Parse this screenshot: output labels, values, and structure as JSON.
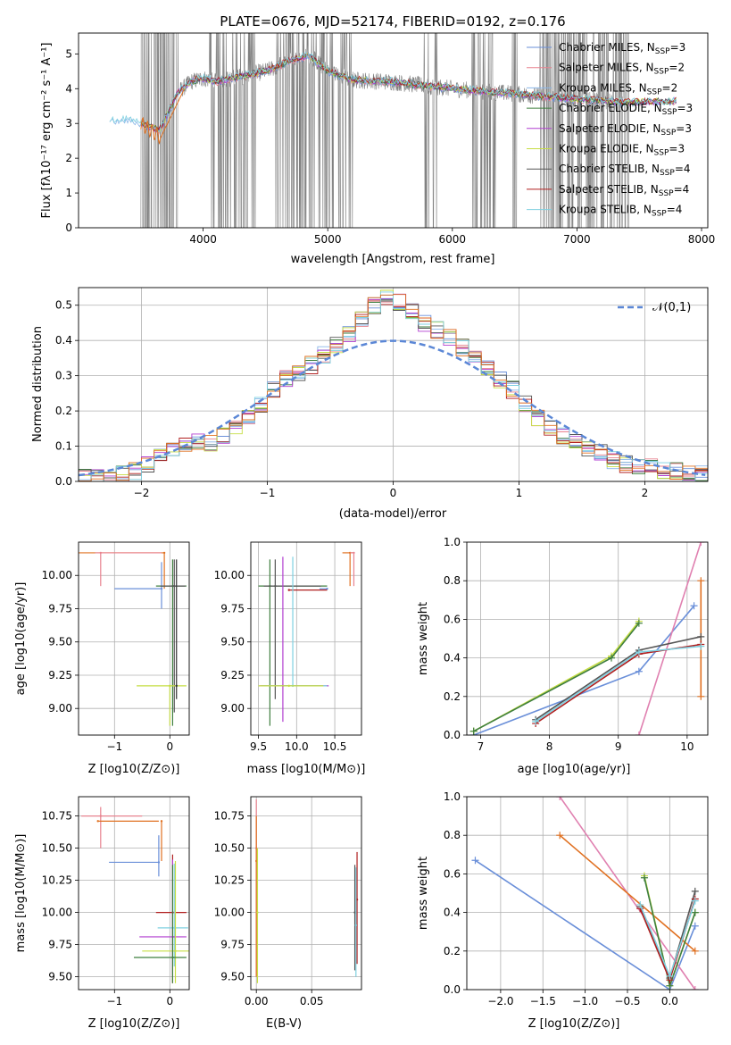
{
  "colors": {
    "c0": "#6a8fd9",
    "c1": "#e8828f",
    "c2": "#8ab6e8",
    "c3": "#3f7f3f",
    "c4": "#b23fd0",
    "c5": "#c6dd44",
    "c6": "#555555",
    "c7": "#b01f1f",
    "c8": "#7fd0e0",
    "chab": "#6688dd",
    "salp": "#e07020",
    "krou": "#e080b0",
    "gray": "#808080",
    "grid": "#b0b0b0"
  },
  "chart_data": [
    {
      "id": "spectrum",
      "type": "line",
      "title": "PLATE=0676, MJD=52174, FIBERID=0192, z=0.176",
      "xlabel": "wavelength [Angstrom, rest frame]",
      "ylabel": "Flux [fλ10⁻¹⁷ erg cm⁻² s⁻¹ A⁻¹]",
      "xlim": [
        3000,
        8050
      ],
      "ylim": [
        0,
        5.6
      ],
      "xticks": [
        4000,
        5000,
        6000,
        7000,
        8000
      ],
      "yticks": [
        0,
        1,
        2,
        3,
        4,
        5
      ],
      "legend_position": "upper-right",
      "legend": [
        "Chabrier MILES, N_SSP=3",
        "Salpeter MILES, N_SSP=2",
        "Kroupa MILES, N_SSP=2",
        "Chabrier ELODIE, N_SSP=3",
        "Salpeter ELODIE, N_SSP=3",
        "Kroupa ELODIE, N_SSP=3",
        "Chabrier STELIB, N_SSP=4",
        "Salpeter STELIB, N_SSP=4",
        "Kroupa STELIB, N_SSP=4"
      ],
      "legend_colors": [
        "#6a8fd9",
        "#e8828f",
        "#8ab6e8",
        "#3f7f3f",
        "#b23fd0",
        "#c6dd44",
        "#555555",
        "#b01f1f",
        "#7fd0e0"
      ],
      "model_continuum": {
        "x": [
          3250,
          3400,
          3500,
          3650,
          3800,
          3900,
          4000,
          4100,
          4300,
          4500,
          4700,
          4850,
          5000,
          5200,
          5500,
          6000,
          6500,
          7000,
          7400,
          7800
        ],
        "y": [
          3.05,
          3.1,
          3.0,
          2.8,
          3.9,
          4.2,
          4.3,
          4.2,
          4.35,
          4.5,
          4.8,
          4.95,
          4.5,
          4.25,
          4.2,
          4.0,
          3.85,
          3.7,
          3.6,
          3.65
        ]
      }
    },
    {
      "id": "residuals",
      "type": "line",
      "xlabel": "(data-model)/error",
      "ylabel": "Normed distribution",
      "xlim": [
        -2.5,
        2.5
      ],
      "ylim": [
        0,
        0.55
      ],
      "xticks": [
        -2,
        -1,
        0,
        1,
        2
      ],
      "yticks": [
        0.0,
        0.1,
        0.2,
        0.3,
        0.4,
        0.5
      ],
      "grid": true,
      "legend_position": "upper-right",
      "reference_label": "𝒩(0,1)",
      "hist_bin_width": 0.1,
      "hist_centers": [
        -2.45,
        -2.35,
        -2.25,
        -2.15,
        -2.05,
        -1.95,
        -1.85,
        -1.75,
        -1.65,
        -1.55,
        -1.45,
        -1.35,
        -1.25,
        -1.15,
        -1.05,
        -0.95,
        -0.85,
        -0.75,
        -0.65,
        -0.55,
        -0.45,
        -0.35,
        -0.25,
        -0.15,
        -0.05,
        0.05,
        0.15,
        0.25,
        0.35,
        0.45,
        0.55,
        0.65,
        0.75,
        0.85,
        0.95,
        1.05,
        1.15,
        1.25,
        1.35,
        1.45,
        1.55,
        1.65,
        1.75,
        1.85,
        1.95,
        2.05,
        2.15,
        2.25,
        2.35,
        2.45
      ],
      "hist_values": [
        0.01,
        0.01,
        0.01,
        0.02,
        0.03,
        0.05,
        0.07,
        0.09,
        0.1,
        0.11,
        0.11,
        0.13,
        0.15,
        0.18,
        0.22,
        0.26,
        0.29,
        0.31,
        0.33,
        0.36,
        0.39,
        0.42,
        0.46,
        0.5,
        0.52,
        0.51,
        0.48,
        0.45,
        0.43,
        0.41,
        0.38,
        0.35,
        0.32,
        0.29,
        0.26,
        0.22,
        0.18,
        0.15,
        0.13,
        0.11,
        0.09,
        0.08,
        0.06,
        0.05,
        0.04,
        0.04,
        0.03,
        0.03,
        0.02,
        0.02
      ]
    },
    {
      "id": "age-vs-Z",
      "type": "scatter",
      "xlabel": "Z [log10(Z/Z⊙)]",
      "ylabel": "age  [log10(age/yr)]",
      "xlim": [
        -1.65,
        0.35
      ],
      "ylim": [
        8.8,
        10.25
      ],
      "xticks": [
        -1,
        0
      ],
      "yticks": [
        9.0,
        9.25,
        9.5,
        9.75,
        10.0
      ],
      "grid": true,
      "points": [
        {
          "x": -0.1,
          "y": 10.17,
          "xerr": [
            1.55,
            0.0
          ],
          "yerr": [
            0.27,
            0.0
          ],
          "color": "#e07020"
        },
        {
          "x": -1.25,
          "y": 10.17,
          "xerr": [
            0.1,
            1.1
          ],
          "yerr": [
            0.25,
            0.0
          ],
          "color": "#e8828f"
        },
        {
          "x": -0.15,
          "y": 9.9,
          "xerr": [
            0.85,
            0.0
          ],
          "yerr": [
            0.15,
            0.2
          ],
          "color": "#6a8fd9"
        },
        {
          "x": 0.05,
          "y": 9.92,
          "xerr": [
            0.3,
            0.25
          ],
          "yerr": [
            1.05,
            0.2
          ],
          "color": "#3f7f3f"
        },
        {
          "x": 0.08,
          "y": 9.92,
          "xerr": [
            0.25,
            0.2
          ],
          "yerr": [
            0.95,
            0.2
          ],
          "color": "#555555"
        },
        {
          "x": 0.0,
          "y": 9.17,
          "xerr": [
            0.6,
            0.3
          ],
          "yerr": [
            0.3,
            0.0
          ],
          "color": "#c6dd44"
        },
        {
          "x": 0.12,
          "y": 9.17,
          "xerr": [
            0.0,
            0.0
          ],
          "yerr": [
            0.1,
            0.95
          ],
          "color": "#333333"
        }
      ]
    },
    {
      "id": "age-vs-mass",
      "type": "scatter",
      "xlabel": "mass [log10(M/M⊙)]",
      "ylabel": "",
      "xlim": [
        9.4,
        10.85
      ],
      "ylim": [
        8.8,
        10.25
      ],
      "xticks": [
        9.5,
        10.0,
        10.5
      ],
      "yticks": [
        9.0,
        9.25,
        9.5,
        9.75,
        10.0
      ],
      "grid": true,
      "points": [
        {
          "x": 10.7,
          "y": 10.17,
          "xerr": [
            0.1,
            0.05
          ],
          "yerr": [
            0.25,
            0.0
          ],
          "color": "#e07020"
        },
        {
          "x": 10.75,
          "y": 10.17,
          "xerr": [
            0.05,
            0.0
          ],
          "yerr": [
            0.25,
            0.0
          ],
          "color": "#e8828f"
        },
        {
          "x": 10.4,
          "y": 9.9,
          "xerr": [
            0.1,
            0.0
          ],
          "yerr": [
            0.0,
            0.0
          ],
          "color": "#6a8fd9"
        },
        {
          "x": 9.65,
          "y": 9.92,
          "xerr": [
            0.15,
            0.75
          ],
          "yerr": [
            1.05,
            0.2
          ],
          "color": "#3f7f3f"
        },
        {
          "x": 9.72,
          "y": 9.92,
          "xerr": [
            0.15,
            0.6
          ],
          "yerr": [
            0.85,
            0.2
          ],
          "color": "#555555"
        },
        {
          "x": 9.9,
          "y": 9.89,
          "xerr": [
            0.0,
            0.5
          ],
          "yerr": [
            0.0,
            0.0
          ],
          "color": "#b01f1f"
        },
        {
          "x": 9.82,
          "y": 9.17,
          "xerr": [
            0.3,
            0.6
          ],
          "yerr": [
            0.27,
            0.97
          ],
          "color": "#b23fd0"
        },
        {
          "x": 9.95,
          "y": 9.17,
          "xerr": [
            0.4,
            0.45
          ],
          "yerr": [
            0.0,
            0.97
          ],
          "color": "#7fd0e0"
        },
        {
          "x": 9.9,
          "y": 9.17,
          "xerr": [
            0.4,
            0.45
          ],
          "yerr": [
            0.0,
            0.0
          ],
          "color": "#c6dd44"
        }
      ]
    },
    {
      "id": "weight-vs-age",
      "type": "line",
      "xlabel": "age  [log10(age/yr)]",
      "ylabel": "mass weight",
      "xlim": [
        6.8,
        10.3
      ],
      "ylim": [
        0,
        1
      ],
      "xticks": [
        7,
        8,
        9,
        10
      ],
      "yticks": [
        0.0,
        0.2,
        0.4,
        0.6,
        0.8,
        1.0
      ],
      "grid": true,
      "series": [
        {
          "color": "#6a8fd9",
          "x": [
            6.9,
            9.3,
            10.1
          ],
          "y": [
            0.0,
            0.33,
            0.67
          ]
        },
        {
          "color": "#e080b0",
          "x": [
            9.3,
            10.2
          ],
          "y": [
            0.0,
            1.0
          ]
        },
        {
          "color": "#e07020",
          "x": [
            10.2,
            10.2
          ],
          "y": [
            0.2,
            0.8
          ]
        },
        {
          "color": "#c6dd44",
          "x": [
            6.9,
            8.9,
            9.3
          ],
          "y": [
            0.02,
            0.41,
            0.59
          ]
        },
        {
          "color": "#3f7f3f",
          "x": [
            6.9,
            8.9,
            9.3
          ],
          "y": [
            0.02,
            0.4,
            0.58
          ]
        },
        {
          "color": "#555555",
          "x": [
            7.8,
            9.3,
            10.2
          ],
          "y": [
            0.08,
            0.44,
            0.51
          ]
        },
        {
          "color": "#b01f1f",
          "x": [
            7.8,
            9.3,
            10.2
          ],
          "y": [
            0.06,
            0.42,
            0.47
          ]
        },
        {
          "color": "#7fd0e0",
          "x": [
            7.8,
            9.3,
            10.2
          ],
          "y": [
            0.07,
            0.43,
            0.46
          ]
        }
      ]
    },
    {
      "id": "mass-vs-Z",
      "type": "scatter",
      "xlabel": "Z [log10(Z/Z⊙)]",
      "ylabel": "mass [log10(M/M⊙)]",
      "xlim": [
        -1.65,
        0.35
      ],
      "ylim": [
        9.4,
        10.9
      ],
      "xticks": [
        -1,
        0
      ],
      "yticks": [
        9.5,
        9.75,
        10.0,
        10.25,
        10.5,
        10.75
      ],
      "grid": true,
      "points": [
        {
          "x": -1.25,
          "y": 10.75,
          "xerr": [
            0.35,
            0.75
          ],
          "yerr": [
            0.25,
            0.07
          ],
          "color": "#e8828f"
        },
        {
          "x": -1.3,
          "y": 10.71,
          "xerr": [
            0.0,
            1.1
          ],
          "yerr": [
            0.0,
            0.0
          ],
          "color": "#e07020"
        },
        {
          "x": -0.15,
          "y": 10.71,
          "xerr": [
            0.0,
            0.0
          ],
          "yerr": [
            0.31,
            0.0
          ],
          "color": "#e07020"
        },
        {
          "x": -0.2,
          "y": 10.39,
          "xerr": [
            0.9,
            0.0
          ],
          "yerr": [
            0.11,
            0.21
          ],
          "color": "#6a8fd9"
        },
        {
          "x": 0.05,
          "y": 10.0,
          "xerr": [
            0.3,
            0.25
          ],
          "yerr": [
            0.55,
            0.45
          ],
          "color": "#b01f1f"
        },
        {
          "x": 0.08,
          "y": 9.88,
          "xerr": [
            0.3,
            0.25
          ],
          "yerr": [
            0.3,
            0.5
          ],
          "color": "#7fd0e0"
        },
        {
          "x": 0.05,
          "y": 9.81,
          "xerr": [
            0.6,
            0.25
          ],
          "yerr": [
            0.3,
            0.6
          ],
          "color": "#b23fd0"
        },
        {
          "x": 0.1,
          "y": 9.7,
          "xerr": [
            0.6,
            0.25
          ],
          "yerr": [
            0.25,
            0.7
          ],
          "color": "#c6dd44"
        },
        {
          "x": 0.05,
          "y": 9.65,
          "xerr": [
            0.7,
            0.25
          ],
          "yerr": [
            0.2,
            0.72
          ],
          "color": "#3f7f3f"
        }
      ]
    },
    {
      "id": "mass-vs-EBV",
      "type": "scatter",
      "xlabel": "E(B-V)",
      "ylabel": "",
      "xlim": [
        -0.005,
        0.095
      ],
      "ylim": [
        9.4,
        10.9
      ],
      "xticks": [
        0.0,
        0.05
      ],
      "yticks": [
        9.5,
        9.75,
        10.0,
        10.25,
        10.5,
        10.75
      ],
      "grid": true,
      "points": [
        {
          "x": 0.0,
          "y": 10.5,
          "xerr": [
            0.0,
            0.0
          ],
          "yerr": [
            1.0,
            0.38
          ],
          "color": "#e8828f"
        },
        {
          "x": 0.0,
          "y": 10.4,
          "xerr": [
            0.0,
            0.0
          ],
          "yerr": [
            0.9,
            0.35
          ],
          "color": "#e07020"
        },
        {
          "x": 0.001,
          "y": 10.0,
          "xerr": [
            0.0,
            0.0
          ],
          "yerr": [
            0.55,
            0.5
          ],
          "color": "#c6dd44"
        },
        {
          "x": 0.089,
          "y": 10.0,
          "xerr": [
            0.0,
            0.0
          ],
          "yerr": [
            0.45,
            0.37
          ],
          "color": "#555555"
        },
        {
          "x": 0.091,
          "y": 10.1,
          "xerr": [
            0.0,
            0.0
          ],
          "yerr": [
            0.5,
            0.37
          ],
          "color": "#b01f1f"
        },
        {
          "x": 0.09,
          "y": 9.9,
          "xerr": [
            0.0,
            0.0
          ],
          "yerr": [
            0.4,
            0.45
          ],
          "color": "#7fd0e0"
        }
      ]
    },
    {
      "id": "weight-vs-Z",
      "type": "line",
      "xlabel": "Z [log10(Z/Z⊙)]",
      "ylabel": "mass weight",
      "xlim": [
        -2.4,
        0.45
      ],
      "ylim": [
        0,
        1
      ],
      "xticks": [
        -2.0,
        -1.5,
        -1.0,
        -0.5,
        0.0
      ],
      "yticks": [
        0.0,
        0.2,
        0.4,
        0.6,
        0.8,
        1.0
      ],
      "grid": true,
      "series": [
        {
          "color": "#6a8fd9",
          "x": [
            -2.3,
            0.0,
            0.3
          ],
          "y": [
            0.67,
            0.0,
            0.33
          ]
        },
        {
          "color": "#e080b0",
          "x": [
            -1.3,
            0.3
          ],
          "y": [
            1.0,
            0.0
          ]
        },
        {
          "color": "#e07020",
          "x": [
            -1.3,
            0.3
          ],
          "y": [
            0.8,
            0.2
          ]
        },
        {
          "color": "#c6dd44",
          "x": [
            -0.3,
            0.0,
            0.3
          ],
          "y": [
            0.59,
            0.02,
            0.4
          ]
        },
        {
          "color": "#3f7f3f",
          "x": [
            -0.3,
            0.0,
            0.3
          ],
          "y": [
            0.58,
            0.02,
            0.4
          ]
        },
        {
          "color": "#555555",
          "x": [
            -0.35,
            0.0,
            0.3
          ],
          "y": [
            0.43,
            0.06,
            0.51
          ]
        },
        {
          "color": "#b01f1f",
          "x": [
            -0.35,
            0.0,
            0.3
          ],
          "y": [
            0.42,
            0.05,
            0.47
          ]
        },
        {
          "color": "#7fd0e0",
          "x": [
            -0.35,
            0.0,
            0.3
          ],
          "y": [
            0.44,
            0.07,
            0.46
          ]
        }
      ]
    }
  ]
}
